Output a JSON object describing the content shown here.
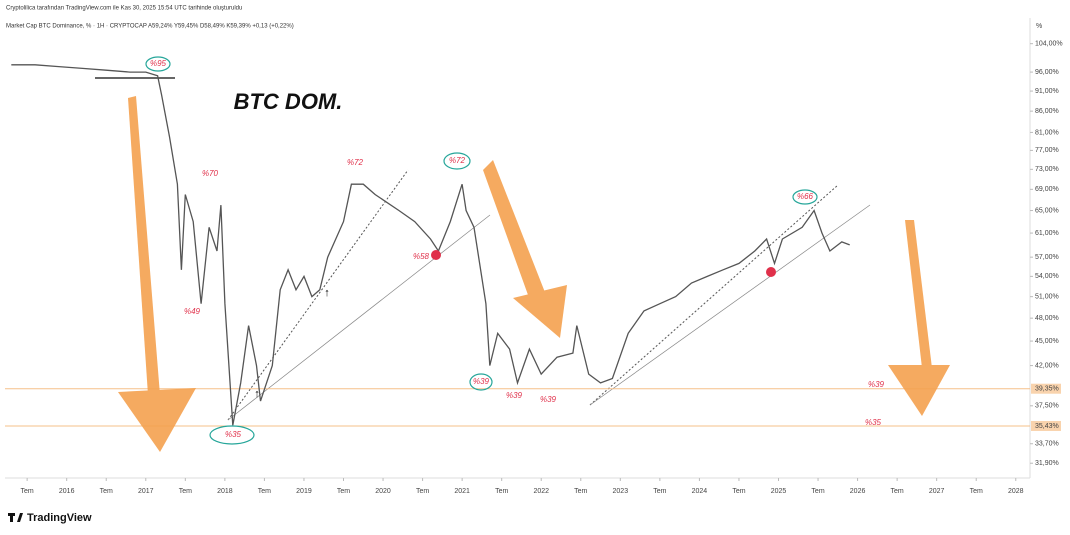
{
  "chart_data": {
    "type": "line",
    "caption": "Cryptolilica tarafından TradingView.com ile Kas 30, 2025 15:54 UTC tarihinde oluşturuldu",
    "subtitle": "Market Cap BTC Dominance, % · 1H · CRYPTOCAP  A59,24% Y59,45% D58,49% K59,39% +0,13 (+0,22%)",
    "y_axis_label": "%",
    "branding": "TradingView",
    "log_scale": true,
    "grid": false,
    "color": "#555555",
    "x": [
      2015.3,
      2015.6,
      2015.9,
      2016.2,
      2016.5,
      2016.8,
      2017.0,
      2017.15,
      2017.2,
      2017.3,
      2017.4,
      2017.45,
      2017.5,
      2017.6,
      2017.7,
      2017.8,
      2017.9,
      2017.95,
      2018.0,
      2018.1,
      2018.2,
      2018.3,
      2018.4,
      2018.45,
      2018.6,
      2018.7,
      2018.8,
      2018.9,
      2019.0,
      2019.1,
      2019.2,
      2019.3,
      2019.5,
      2019.6,
      2019.75,
      2019.9,
      2020.0,
      2020.2,
      2020.4,
      2020.6,
      2020.7,
      2020.85,
      2021.0,
      2021.05,
      2021.15,
      2021.3,
      2021.35,
      2021.45,
      2021.6,
      2021.7,
      2021.85,
      2022.0,
      2022.2,
      2022.4,
      2022.45,
      2022.6,
      2022.75,
      2022.9,
      2023.1,
      2023.3,
      2023.5,
      2023.7,
      2023.9,
      2024.1,
      2024.3,
      2024.5,
      2024.7,
      2024.85,
      2024.95,
      2025.05,
      2025.3,
      2025.45,
      2025.55,
      2025.65,
      2025.8,
      2025.9
    ],
    "values": [
      98,
      98,
      97.5,
      97,
      96.5,
      96,
      96,
      95,
      90,
      80,
      70,
      55,
      68,
      63,
      50,
      62,
      58,
      66,
      50,
      35.5,
      40,
      47,
      42,
      38,
      42,
      52,
      55,
      52,
      54,
      51,
      52,
      57,
      63,
      70,
      70,
      68,
      67,
      65,
      63,
      60,
      58,
      63,
      70,
      65,
      62,
      50,
      42,
      46,
      44,
      40,
      44,
      41,
      43,
      43.5,
      47,
      41,
      40,
      40.5,
      46,
      49,
      50,
      51,
      53,
      54,
      55,
      56,
      58,
      60,
      56,
      60,
      62,
      65,
      61,
      58,
      59.5,
      59
    ],
    "xlim": [
      2015.22,
      2028.18
    ],
    "ylim": [
      30.6,
      111.8
    ],
    "xticks": [
      {
        "value": 2015.5,
        "label": "Tem"
      },
      2016,
      {
        "value": 2016.5,
        "label": "Tem"
      },
      2017,
      {
        "value": 2017.5,
        "label": "Tem"
      },
      2018,
      {
        "value": 2018.5,
        "label": "Tem"
      },
      2019,
      {
        "value": 2019.5,
        "label": "Tem"
      },
      2020,
      {
        "value": 2020.5,
        "label": "Tem"
      },
      2021,
      {
        "value": 2021.5,
        "label": "Tem"
      },
      2022,
      {
        "value": 2022.5,
        "label": "Tem"
      },
      2023,
      {
        "value": 2023.5,
        "label": "Tem"
      },
      2024,
      {
        "value": 2024.5,
        "label": "Tem"
      },
      2025,
      {
        "value": 2025.5,
        "label": "Tem"
      },
      2026,
      {
        "value": 2026.5,
        "label": "Tem"
      },
      2027,
      {
        "value": 2027.5,
        "label": "Tem"
      },
      2028
    ],
    "yticks": [
      {
        "value": 104,
        "label": "104,00%"
      },
      {
        "value": 96,
        "label": "96,00%"
      },
      {
        "value": 91,
        "label": "91,00%"
      },
      {
        "value": 86,
        "label": "86,00%"
      },
      {
        "value": 81,
        "label": "81,00%"
      },
      {
        "value": 77,
        "label": "77,00%"
      },
      {
        "value": 73,
        "label": "73,00%"
      },
      {
        "value": 69,
        "label": "69,00%"
      },
      {
        "value": 65,
        "label": "65,00%"
      },
      {
        "value": 61,
        "label": "61,00%"
      },
      {
        "value": 57,
        "label": "57,00%"
      },
      {
        "value": 54,
        "label": "54,00%"
      },
      {
        "value": 51,
        "label": "51,00%"
      },
      {
        "value": 48,
        "label": "48,00%"
      },
      {
        "value": 45,
        "label": "45,00%"
      },
      {
        "value": 42,
        "label": "42,00%"
      },
      {
        "value": 37.5,
        "label": "37,50%"
      },
      {
        "value": 33.7,
        "label": "33,70%"
      },
      {
        "value": 31.9,
        "label": "31,90%"
      }
    ],
    "reference_lines": [
      {
        "value": 39.35,
        "label": "39,35%"
      },
      {
        "value": 35.43,
        "label": "35,43%"
      }
    ],
    "annotations": [
      "BTC DOM.",
      "%95",
      "%70",
      "%49",
      "%35",
      "%72",
      "%58",
      "%72",
      "%39",
      "%39",
      "%39",
      "%66",
      "%39",
      "%35"
    ]
  }
}
